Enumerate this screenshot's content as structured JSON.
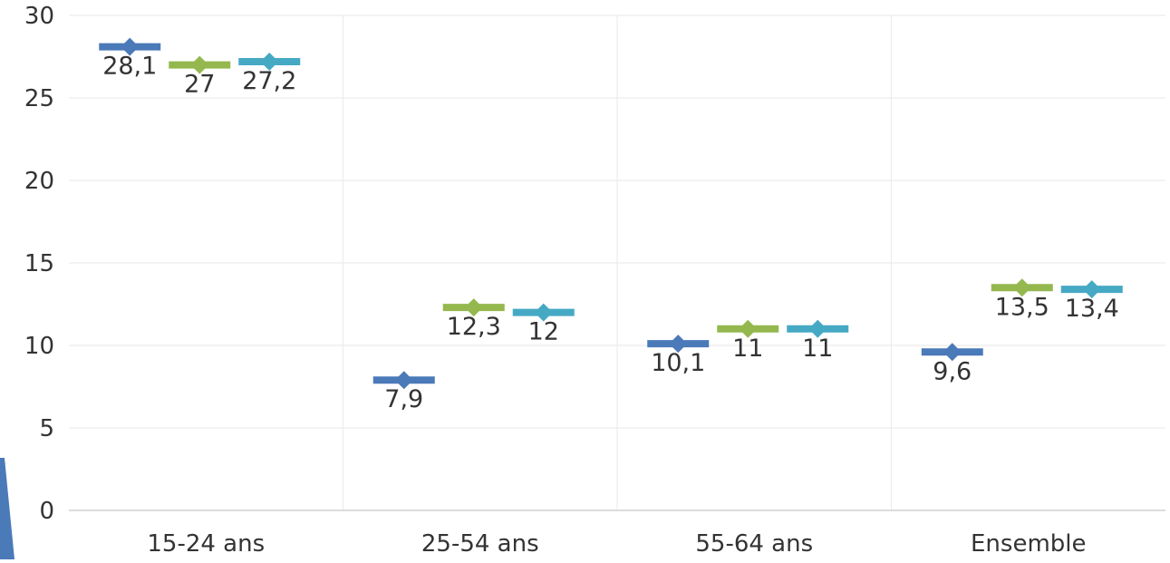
{
  "chart_data": {
    "type": "scatter",
    "title": "",
    "xlabel": "",
    "ylabel": "",
    "ylim": [
      0,
      30
    ],
    "y_ticks": [
      "0",
      "5",
      "10",
      "15",
      "20",
      "25",
      "30"
    ],
    "categories": [
      "15-24 ans",
      "25-54 ans",
      "55-64 ans",
      "Ensemble"
    ],
    "grid": true,
    "legend": "none",
    "series": [
      {
        "color": "#4a7ab8",
        "values": [
          28.1,
          7.9,
          10.1,
          9.6
        ],
        "labels": [
          "28,1",
          "7,9",
          "10,1",
          "9,6"
        ]
      },
      {
        "color": "#94b84e",
        "values": [
          27,
          12.3,
          11,
          13.5
        ],
        "labels": [
          "27",
          "12,3",
          "11",
          "13,5"
        ]
      },
      {
        "color": "#45a9c4",
        "values": [
          27.2,
          12,
          11,
          13.4
        ],
        "labels": [
          "27,2",
          "12",
          "11",
          "13,4"
        ]
      }
    ],
    "colors": {
      "grid": "#ececec",
      "axis": "#d0d0d0",
      "text": "#333333",
      "decor": "#4a7ab8"
    }
  }
}
